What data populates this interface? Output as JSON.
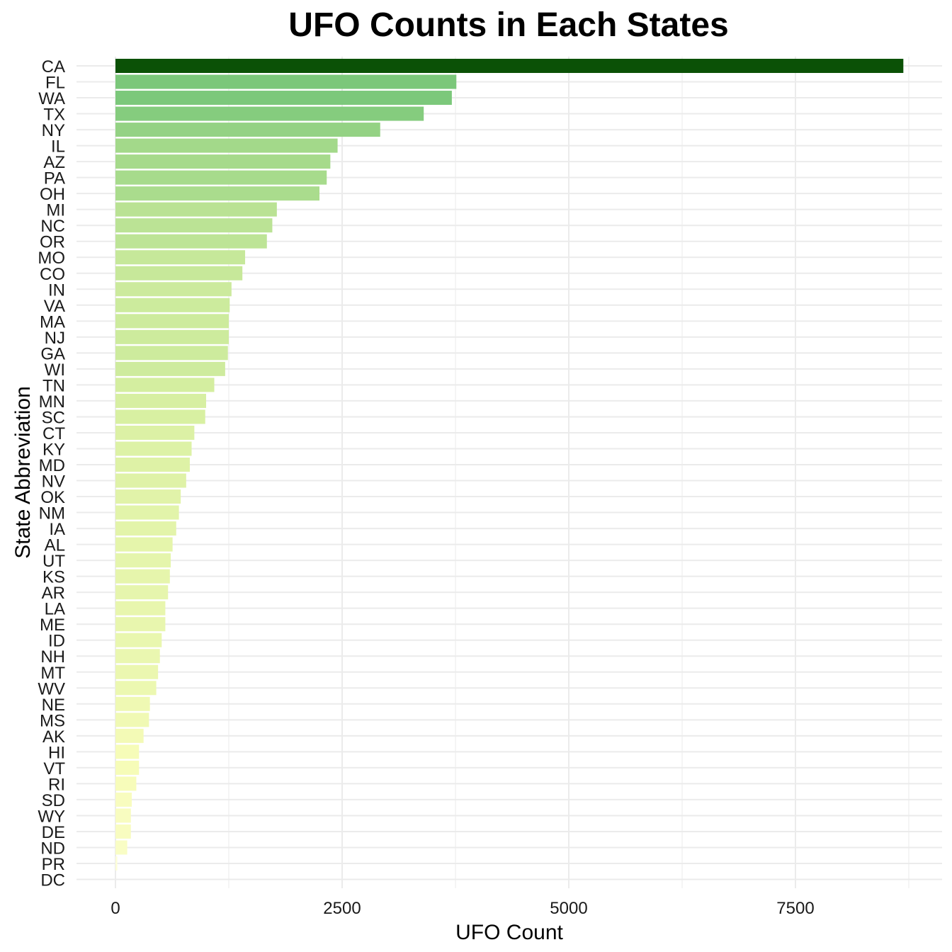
{
  "chart_data": {
    "type": "bar",
    "orientation": "horizontal",
    "title": "UFO Counts in Each States",
    "xlabel": "UFO Count",
    "ylabel": "State Abbreviation",
    "xlim": [
      0,
      8700
    ],
    "x_ticks": [
      0,
      2500,
      5000,
      7500
    ],
    "grid": true,
    "legend": "none",
    "colors": {
      "low": "#ffffe5",
      "high": "#0b5106",
      "grid": "#ebebeb"
    },
    "categories": [
      "CA",
      "FL",
      "WA",
      "TX",
      "NY",
      "IL",
      "AZ",
      "PA",
      "OH",
      "MI",
      "NC",
      "OR",
      "MO",
      "CO",
      "IN",
      "VA",
      "MA",
      "NJ",
      "GA",
      "WI",
      "TN",
      "MN",
      "SC",
      "CT",
      "KY",
      "MD",
      "NV",
      "OK",
      "NM",
      "IA",
      "AL",
      "UT",
      "KS",
      "AR",
      "LA",
      "ME",
      "ID",
      "NH",
      "MT",
      "WV",
      "NE",
      "MS",
      "AK",
      "HI",
      "VT",
      "RI",
      "SD",
      "WY",
      "DE",
      "ND",
      "PR",
      "DC"
    ],
    "values": [
      8690,
      3760,
      3710,
      3400,
      2920,
      2450,
      2370,
      2330,
      2250,
      1780,
      1730,
      1670,
      1430,
      1400,
      1280,
      1260,
      1250,
      1250,
      1240,
      1210,
      1090,
      1000,
      990,
      870,
      840,
      820,
      780,
      720,
      700,
      670,
      630,
      610,
      600,
      580,
      550,
      550,
      510,
      490,
      470,
      450,
      380,
      370,
      310,
      260,
      260,
      230,
      180,
      170,
      170,
      130,
      20,
      0
    ]
  }
}
